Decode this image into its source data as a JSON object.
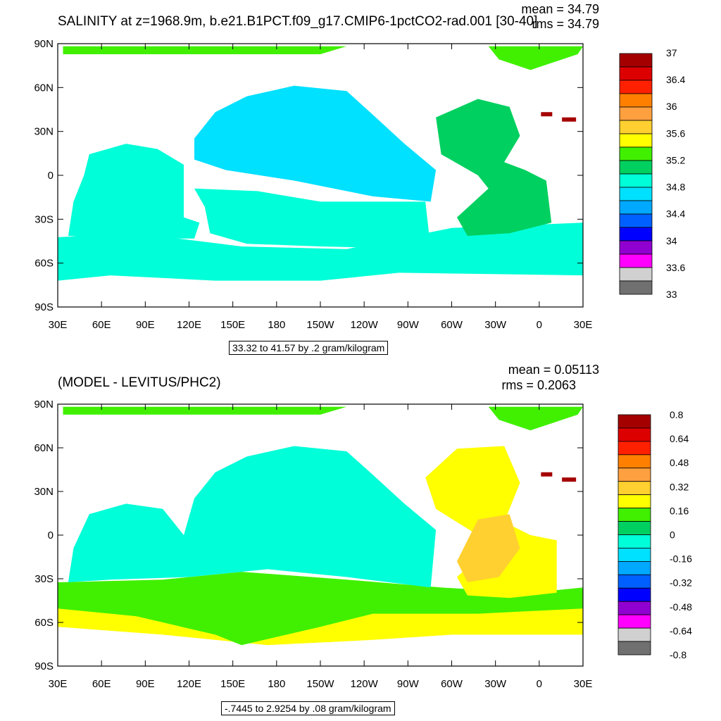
{
  "panels": [
    {
      "title": "SALINITY at z=1968.9m, b.e21.B1PCT.f09_g17.CMIP6-1pctCO2-rad.001 [30-40]",
      "mean_text": "mean = 34.79",
      "rms_text": "rms = 34.79",
      "range_text": "33.32 to 41.57 by .2 gram/kilogram",
      "y_labels": [
        "90N",
        "60N",
        "30N",
        "0",
        "30S",
        "60S",
        "90S"
      ],
      "x_labels": [
        "30E",
        "60E",
        "90E",
        "120E",
        "150E",
        "180",
        "150W",
        "120W",
        "90W",
        "60W",
        "30W",
        "0",
        "30E"
      ],
      "colorbar": {
        "colors": [
          "#a50000",
          "#dd0000",
          "#ff2000",
          "#ff8000",
          "#ffa040",
          "#ffd030",
          "#ffff00",
          "#40f000",
          "#00d060",
          "#00ffd8",
          "#00e0ff",
          "#00a8ff",
          "#0060ff",
          "#0000ff",
          "#9000d0",
          "#ff00ff",
          "#d0d0d0",
          "#707070"
        ],
        "labels": [
          "37",
          "36.4",
          "36",
          "35.6",
          "35.2",
          "34.8",
          "34.4",
          "34",
          "33.6",
          "33"
        ]
      }
    },
    {
      "title": "(MODEL - LEVITUS/PHC2)",
      "mean_text": "mean = 0.05113",
      "rms_text": "rms = 0.2063",
      "range_text": "-.7445 to 2.9254 by .08 gram/kilogram",
      "y_labels": [
        "90N",
        "60N",
        "30N",
        "0",
        "30S",
        "60S",
        "90S"
      ],
      "x_labels": [
        "30E",
        "60E",
        "90E",
        "120E",
        "150E",
        "180",
        "150W",
        "120W",
        "90W",
        "60W",
        "30W",
        "0",
        "30E"
      ],
      "colorbar": {
        "colors": [
          "#a50000",
          "#dd0000",
          "#ff2000",
          "#ff8000",
          "#ffa040",
          "#ffd030",
          "#ffff00",
          "#40f000",
          "#00d060",
          "#00ffd8",
          "#00e0ff",
          "#00a8ff",
          "#0060ff",
          "#0000ff",
          "#9000d0",
          "#ff00ff",
          "#d0d0d0",
          "#707070"
        ],
        "labels": [
          "0.8",
          "0.64",
          "0.48",
          "0.32",
          "0.16",
          "0",
          "-0.16",
          "-0.32",
          "-0.48",
          "-0.64",
          "-0.8"
        ]
      }
    }
  ],
  "map_colors": {
    "arctic": "#40f000",
    "pacific": "#00e0ff",
    "indian": "#00ffd8",
    "southern": "#00ffd8",
    "atlantic": "#00d060",
    "diff_main": "#00ffd8",
    "diff_south": "#40f000",
    "diff_far_south": "#ffff00",
    "diff_atlantic": "#ffd030",
    "diff_nae": "#ffff00",
    "mediterranean": "#a50000"
  }
}
